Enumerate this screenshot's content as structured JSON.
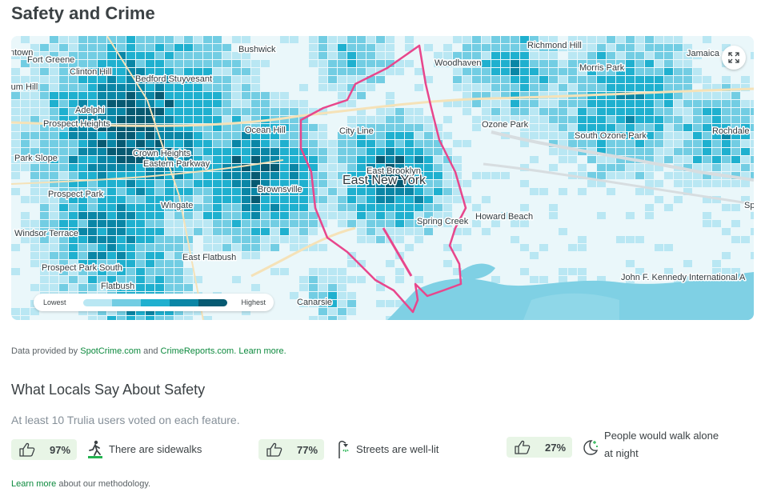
{
  "page": {
    "title": "Safety and Crime"
  },
  "map": {
    "labels": [
      {
        "id": "bushwick",
        "text": "Bushwick"
      },
      {
        "id": "fortgreene",
        "text": "Fort Greene"
      },
      {
        "id": "clintonhill",
        "text": "Clinton Hill"
      },
      {
        "id": "bedstuy",
        "text": "Bedford Stuyvesant"
      },
      {
        "id": "adelphi",
        "text": "Adelphi"
      },
      {
        "id": "prospectheights",
        "text": "Prospect Heights"
      },
      {
        "id": "oceanhill",
        "text": "Ocean Hill"
      },
      {
        "id": "cityline",
        "text": "City Line"
      },
      {
        "id": "woodhaven",
        "text": "Woodhaven"
      },
      {
        "id": "richmondhill",
        "text": "Richmond Hill"
      },
      {
        "id": "jamaica",
        "text": "Jamaica"
      },
      {
        "id": "morrispark",
        "text": "Morris Park"
      },
      {
        "id": "ozonepark",
        "text": "Ozone Park"
      },
      {
        "id": "southozonepark",
        "text": "South Ozone Park"
      },
      {
        "id": "rochdale",
        "text": "Rochdale"
      },
      {
        "id": "parkslope",
        "text": "Park Slope"
      },
      {
        "id": "crownheights",
        "text": "Crown Heights"
      },
      {
        "id": "easternparkway",
        "text": "Eastern Parkway"
      },
      {
        "id": "eastbrooklyn",
        "text": "East Brooklyn"
      },
      {
        "id": "eastnewyork",
        "text": "East New York"
      },
      {
        "id": "prospectpark",
        "text": "Prospect Park"
      },
      {
        "id": "brownsville",
        "text": "Brownsville"
      },
      {
        "id": "wingate",
        "text": "Wingate"
      },
      {
        "id": "springcreek",
        "text": "Spring Creek"
      },
      {
        "id": "howardbeach",
        "text": "Howard Beach"
      },
      {
        "id": "windsorterrace",
        "text": "Windsor Terrace"
      },
      {
        "id": "eastflatbush",
        "text": "East Flatbush"
      },
      {
        "id": "prospectparksouth",
        "text": "Prospect Park South"
      },
      {
        "id": "flatbush",
        "text": "Flatbush"
      },
      {
        "id": "canarsie",
        "text": "Canarsie"
      },
      {
        "id": "jfk",
        "text": "John F. Kennedy International A"
      },
      {
        "id": "cut_town",
        "text": "ntown"
      },
      {
        "id": "cut_hill",
        "text": "rum Hill"
      },
      {
        "id": "cut_sp",
        "text": "Sp"
      }
    ],
    "legend": {
      "low_label": "Lowest",
      "high_label": "Highest",
      "colors": [
        "#e9f7fb",
        "#b9e7f3",
        "#72cde3",
        "#1fb0cf",
        "#0a86a6",
        "#075a72"
      ]
    },
    "colors": {
      "boundary": "#e8468c",
      "water": "#7fd0e4",
      "land": "#eaf7fa",
      "highway": "#f5e2b8"
    }
  },
  "credit": {
    "prefix": "Data provided by",
    "spotcrime": "SpotCrime.com",
    "and": "and",
    "crimereports": "CrimeReports.com.",
    "learn_more": "Learn more."
  },
  "locals": {
    "title": "What Locals Say About Safety",
    "voted": "At least 10 Trulia users voted on each feature.",
    "features": [
      {
        "percent": "97%",
        "label": "There are sidewalks",
        "icon": "pedestrian-icon"
      },
      {
        "percent": "77%",
        "label": "Streets are well-lit",
        "icon": "streetlight-icon"
      },
      {
        "percent": "27%",
        "label_line1": "People would walk alone",
        "label_line2": "at night",
        "icon": "moon-stars-icon"
      }
    ]
  },
  "methodology": {
    "link": "Learn more",
    "suffix": "about our methodology."
  }
}
